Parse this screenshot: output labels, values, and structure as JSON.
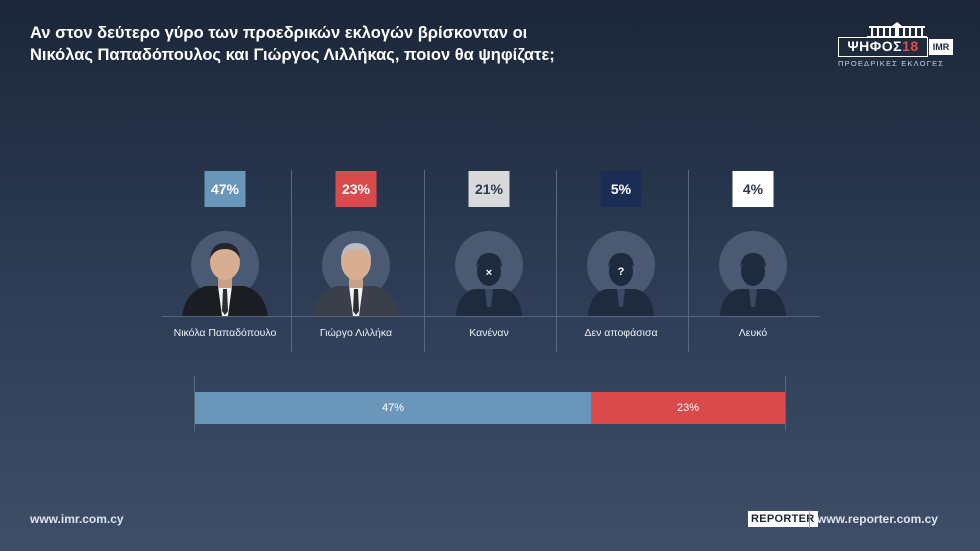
{
  "title_lines": [
    "Αν στον δεύτερο γύρο των προεδρικών εκλογών βρίσκονταν οι",
    "Νικόλας Παπαδόπουλος και Γιώργος Λιλλήκας, ποιον θα ψηφίζατε;"
  ],
  "logo": {
    "word": "ΨΗΦΟΣ",
    "year": "18",
    "imr": "IMR",
    "subtitle": "ΠΡΟΕΔΡΙΚΕΣ ΕΚΛΟΓΕΣ"
  },
  "colors": {
    "papadopoulos": "#6a96ba",
    "lillikas": "#d84a4b",
    "none": "#d9d9d9",
    "undecided": "#1b2d55",
    "blank": "#ffffff"
  },
  "chart_data": {
    "type": "bar",
    "categories": [
      "Νικόλα Παπαδόπουλο",
      "Γιώργο Λιλλήκα",
      "Κανέναν",
      "Δεν αποφάσισα",
      "Λευκό"
    ],
    "values": [
      47,
      23,
      21,
      5,
      4
    ],
    "labels": [
      "47%",
      "23%",
      "21%",
      "5%",
      "4%"
    ],
    "avatars": [
      "person-photo",
      "person-photo",
      "x-silhouette",
      "question-silhouette",
      "plain-silhouette"
    ],
    "stacked_bar": {
      "segments": [
        {
          "name": "Νικόλα Παπαδόπουλο",
          "value": 47,
          "label": "47%"
        },
        {
          "name": "Γιώργο Λιλλήκα",
          "value": 23,
          "label": "23%"
        }
      ],
      "total": 70
    }
  },
  "footer": {
    "left": "www.imr.com.cy",
    "reporter": "REPORTER",
    "right": "www.reporter.com.cy"
  }
}
